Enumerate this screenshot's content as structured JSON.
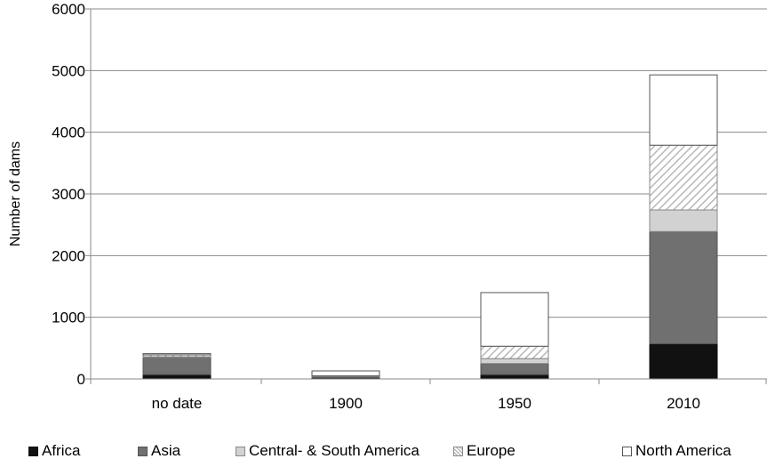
{
  "chart_data": {
    "type": "bar",
    "stacked": true,
    "categories": [
      "no date",
      "1900",
      "1950",
      "2010"
    ],
    "series": [
      {
        "name": "Africa",
        "values": [
          70,
          20,
          70,
          570
        ],
        "color": "#111111",
        "pattern": "solid"
      },
      {
        "name": "Asia",
        "values": [
          280,
          20,
          180,
          1820
        ],
        "color": "#707070",
        "pattern": "solid"
      },
      {
        "name": "Central- & South America",
        "values": [
          10,
          5,
          80,
          350
        ],
        "color": "#d2d2d2",
        "pattern": "solid"
      },
      {
        "name": "Europe",
        "values": [
          30,
          5,
          200,
          1050
        ],
        "color": "#b8b8b8",
        "pattern": "diagonal-hatch"
      },
      {
        "name": "North America",
        "values": [
          20,
          80,
          870,
          1140
        ],
        "color": "#ffffff",
        "pattern": "outline"
      }
    ],
    "ylabel": "Number of dams",
    "xlabel": "",
    "ylim": [
      0,
      6000
    ],
    "yticks": [
      "0",
      "1000",
      "2000",
      "3000",
      "4000",
      "5000",
      "6000"
    ],
    "grid": true,
    "legend_position": "bottom"
  }
}
